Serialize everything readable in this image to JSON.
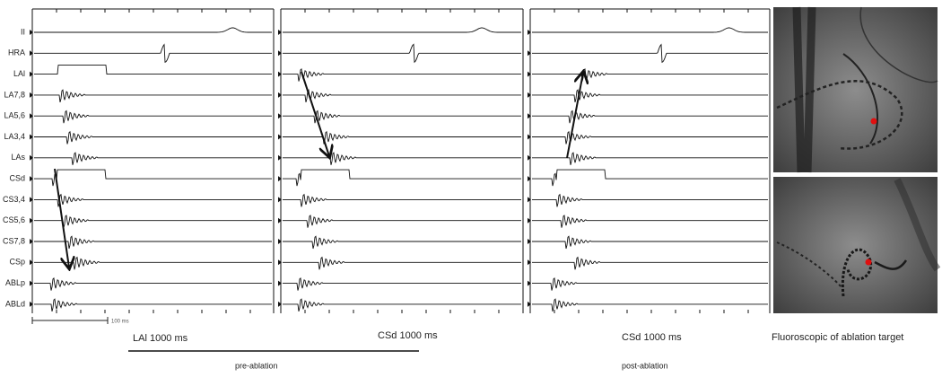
{
  "channels": [
    "II",
    "HRA",
    "LAl",
    "LA7,8",
    "LA5,6",
    "LA3,4",
    "LAs",
    "CSd",
    "CS3,4",
    "CS5,6",
    "CS7,8",
    "CSp",
    "ABLp",
    "ABLd"
  ],
  "panels": [
    {
      "caption": "LAl 1000 ms"
    },
    {
      "caption": "CSd 1000 ms"
    },
    {
      "caption": "CSd 1000 ms"
    }
  ],
  "scale_bar": "100 ms",
  "groups": [
    {
      "label": "pre-ablation"
    },
    {
      "label": "post-ablation"
    }
  ],
  "fluoroscopy": {
    "caption": "Fluoroscopic of ablation target"
  }
}
